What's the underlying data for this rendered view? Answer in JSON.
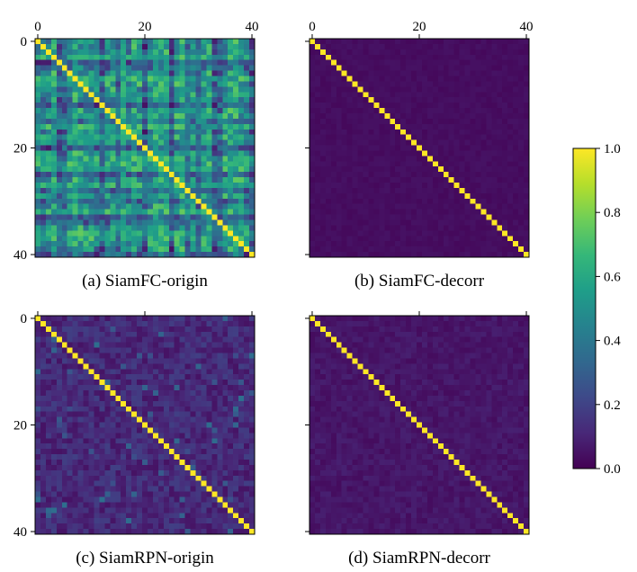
{
  "chart_data": [
    {
      "type": "heatmap",
      "caption": "(a) SiamFC-origin",
      "size": 41,
      "xticks": [
        0,
        20,
        40
      ],
      "yticks": [
        0,
        20,
        40
      ],
      "xtick_labels": [
        "0",
        "20",
        "40"
      ],
      "ytick_labels": [
        "0",
        "20",
        "40"
      ],
      "diagonal_value": 1.0,
      "offdiag_base": 0.22,
      "offdiag_spread": 0.3,
      "strong_cols": [
        3,
        7,
        8,
        14,
        15,
        16,
        18,
        22,
        23,
        24,
        27,
        28,
        29,
        32,
        36,
        37,
        38
      ],
      "strong_rows": [
        3,
        5,
        7,
        9,
        10,
        13,
        16,
        18,
        19,
        21,
        22,
        23,
        24,
        26,
        27,
        30,
        31,
        32,
        34,
        35,
        36,
        37
      ],
      "weak_rows": [
        4,
        15,
        28,
        33
      ],
      "weak_cols": [
        5,
        12,
        20,
        25,
        30,
        34,
        40
      ]
    },
    {
      "type": "heatmap",
      "caption": "(b) SiamFC-decorr",
      "size": 41,
      "xticks": [
        0,
        20,
        40
      ],
      "yticks": [
        0,
        20,
        40
      ],
      "xtick_labels": [
        "0",
        "20",
        "40"
      ],
      "ytick_labels": [],
      "diagonal_value": 1.0,
      "offdiag_base": 0.02,
      "offdiag_spread": 0.03
    },
    {
      "type": "heatmap",
      "caption": "(c) SiamRPN-origin",
      "size": 41,
      "xticks": [
        0,
        20,
        40
      ],
      "yticks": [
        0,
        20,
        40
      ],
      "xtick_labels": [],
      "ytick_labels": [
        "0",
        "20",
        "40"
      ],
      "diagonal_value": 1.0,
      "offdiag_base": 0.05,
      "offdiag_spread": 0.14
    },
    {
      "type": "heatmap",
      "caption": "(d) SiamRPN-decorr",
      "size": 41,
      "xticks": [
        0,
        20,
        40
      ],
      "yticks": [
        0,
        20,
        40
      ],
      "xtick_labels": [],
      "ytick_labels": [],
      "diagonal_value": 1.0,
      "offdiag_base": 0.03,
      "offdiag_spread": 0.06
    }
  ],
  "colorbar": {
    "range": [
      0.0,
      1.0
    ],
    "ticks": [
      1.0,
      0.8,
      0.6,
      0.4,
      0.2,
      0.0
    ],
    "tick_labels": [
      "1.0",
      "0.8",
      "0.6",
      "0.4",
      "0.2",
      "0.0"
    ],
    "colormap": "viridis"
  },
  "colors": {
    "viridis_stops": [
      "#440154",
      "#482878",
      "#3e4989",
      "#31688e",
      "#26828e",
      "#1f9e89",
      "#35b779",
      "#6ece58",
      "#b5de2b",
      "#fde725"
    ]
  }
}
